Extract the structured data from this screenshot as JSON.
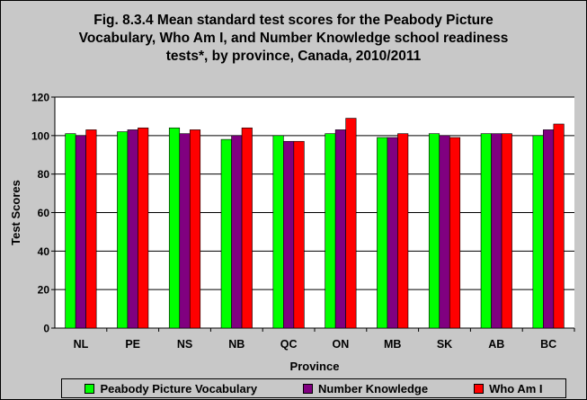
{
  "chart_data": {
    "type": "bar",
    "title": "Fig. 8.3.4 Mean standard test scores for the Peabody Picture Vocabulary, Who Am I, and Number Knowledge school readiness tests*, by province, Canada, 2010/2011",
    "title_lines": [
      "Fig. 8.3.4 Mean standard test scores for the Peabody Picture",
      "Vocabulary, Who Am I, and Number Knowledge school readiness",
      "tests*, by province, Canada, 2010/2011"
    ],
    "xlabel": "Province",
    "ylabel": "Test Scores",
    "ylim": [
      0,
      120
    ],
    "yticks": [
      0,
      20,
      40,
      60,
      80,
      100,
      120
    ],
    "grid": true,
    "legend_position": "bottom",
    "categories": [
      "NL",
      "PE",
      "NS",
      "NB",
      "QC",
      "ON",
      "MB",
      "SK",
      "AB",
      "BC"
    ],
    "series": [
      {
        "name": "Peabody Picture Vocabulary",
        "color": "#00ff00",
        "values": [
          101,
          102,
          104,
          98,
          100,
          101,
          99,
          101,
          101,
          100
        ]
      },
      {
        "name": "Number Knowledge",
        "color": "#800080",
        "values": [
          100,
          103,
          101,
          100,
          97,
          103,
          99,
          100,
          101,
          103
        ]
      },
      {
        "name": "Who Am I",
        "color": "#ff0000",
        "values": [
          103,
          104,
          103,
          104,
          97,
          109,
          101,
          99,
          101,
          106
        ]
      }
    ]
  }
}
